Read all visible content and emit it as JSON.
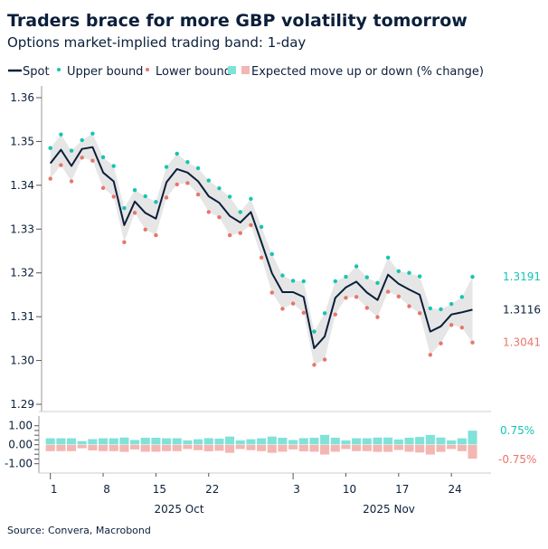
{
  "title": "Traders brace for more GBP volatility tomorrow",
  "subtitle": "Options market-implied trading band: 1-day",
  "source": "Source: Convera, Macrobond",
  "colors": {
    "spot": "#0b1f3a",
    "upper": "#14c4b4",
    "lower": "#e8756c",
    "band": "#e6e6e6",
    "bar_up": "#80e2d8",
    "bar_down": "#f4b6b2"
  },
  "chart_data": [
    {
      "type": "line",
      "legend": [
        "Spot",
        "Upper bound",
        "Lower bound",
        "Expected move up or down (% change)"
      ],
      "legend_placement": "top",
      "ylim": [
        1.29,
        1.36
      ],
      "yticks": [
        "1.29",
        "1.30",
        "1.31",
        "1.32",
        "1.33",
        "1.34",
        "1.35",
        "1.36"
      ],
      "x": [
        "2025-10-01",
        "2025-10-02",
        "2025-10-03",
        "2025-10-06",
        "2025-10-07",
        "2025-10-08",
        "2025-10-09",
        "2025-10-10",
        "2025-10-13",
        "2025-10-14",
        "2025-10-15",
        "2025-10-16",
        "2025-10-17",
        "2025-10-20",
        "2025-10-21",
        "2025-10-22",
        "2025-10-23",
        "2025-10-24",
        "2025-10-27",
        "2025-10-28",
        "2025-10-29",
        "2025-10-30",
        "2025-10-31",
        "2025-11-03",
        "2025-11-04",
        "2025-11-05",
        "2025-11-06",
        "2025-11-07",
        "2025-11-10",
        "2025-11-11",
        "2025-11-12",
        "2025-11-13",
        "2025-11-14",
        "2025-11-17",
        "2025-11-18",
        "2025-11-19",
        "2025-11-20",
        "2025-11-21",
        "2025-11-24",
        "2025-11-25",
        "2025-11-26"
      ],
      "xtick_labels": [
        {
          "index": 0,
          "label": "1"
        },
        {
          "index": 5,
          "label": "8"
        },
        {
          "index": 10,
          "label": "15"
        },
        {
          "index": 15,
          "label": "22"
        },
        {
          "index": 23,
          "label": "3"
        },
        {
          "index": 28,
          "label": "10"
        },
        {
          "index": 33,
          "label": "17"
        },
        {
          "index": 38,
          "label": "24"
        }
      ],
      "month_labels": [
        "2025 Oct",
        "2025 Nov"
      ],
      "series": [
        {
          "name": "Spot",
          "values": [
            1.345,
            1.3481,
            1.3444,
            1.3483,
            1.3487,
            1.3429,
            1.3409,
            1.3309,
            1.3363,
            1.3337,
            1.3324,
            1.3407,
            1.3437,
            1.3429,
            1.3409,
            1.3375,
            1.336,
            1.333,
            1.3315,
            1.3339,
            1.327,
            1.3199,
            1.3156,
            1.3156,
            1.3145,
            1.3028,
            1.3055,
            1.3143,
            1.3167,
            1.318,
            1.3155,
            1.3138,
            1.3196,
            1.3175,
            1.3162,
            1.315,
            1.3066,
            1.3078,
            1.3105,
            1.311,
            1.3116
          ]
        },
        {
          "name": "Upper bound",
          "values": [
            1.3485,
            1.3516,
            1.3479,
            1.3503,
            1.3518,
            1.3464,
            1.3444,
            1.3348,
            1.3389,
            1.3375,
            1.3362,
            1.3442,
            1.3472,
            1.3453,
            1.3439,
            1.3411,
            1.3393,
            1.3374,
            1.3339,
            1.3369,
            1.3305,
            1.3243,
            1.3194,
            1.3182,
            1.3181,
            1.3066,
            1.3108,
            1.3181,
            1.3191,
            1.3215,
            1.319,
            1.3177,
            1.3235,
            1.3204,
            1.32,
            1.3192,
            1.3119,
            1.3117,
            1.3129,
            1.3145,
            1.3191
          ]
        },
        {
          "name": "Lower bound",
          "values": [
            1.3415,
            1.3446,
            1.3409,
            1.3463,
            1.3456,
            1.3394,
            1.3374,
            1.327,
            1.3337,
            1.3299,
            1.3286,
            1.3372,
            1.3402,
            1.3405,
            1.3379,
            1.3339,
            1.3327,
            1.3286,
            1.3291,
            1.3309,
            1.3235,
            1.3155,
            1.3118,
            1.313,
            1.3109,
            1.299,
            1.3002,
            1.3105,
            1.3143,
            1.3145,
            1.312,
            1.3099,
            1.3157,
            1.3146,
            1.3124,
            1.3108,
            1.3013,
            1.3039,
            1.3081,
            1.3075,
            1.3041
          ]
        }
      ],
      "end_labels": {
        "upper": "1.3191",
        "spot": "1.3116",
        "lower": "1.3041"
      }
    },
    {
      "type": "bar",
      "ylim": [
        -1.2,
        1.2
      ],
      "yticks": [
        "1.00",
        "0.00",
        "-1.00"
      ],
      "series": [
        {
          "name": "Expected move up or down (% change)",
          "values": [
            0.35,
            0.35,
            0.35,
            0.2,
            0.31,
            0.35,
            0.35,
            0.39,
            0.26,
            0.38,
            0.38,
            0.35,
            0.35,
            0.24,
            0.3,
            0.36,
            0.33,
            0.44,
            0.24,
            0.3,
            0.35,
            0.44,
            0.38,
            0.26,
            0.36,
            0.38,
            0.53,
            0.38,
            0.24,
            0.35,
            0.35,
            0.39,
            0.39,
            0.29,
            0.38,
            0.42,
            0.53,
            0.39,
            0.24,
            0.35,
            0.75
          ]
        }
      ],
      "end_labels": {
        "up": "0.75%",
        "down": "-0.75%"
      }
    }
  ]
}
